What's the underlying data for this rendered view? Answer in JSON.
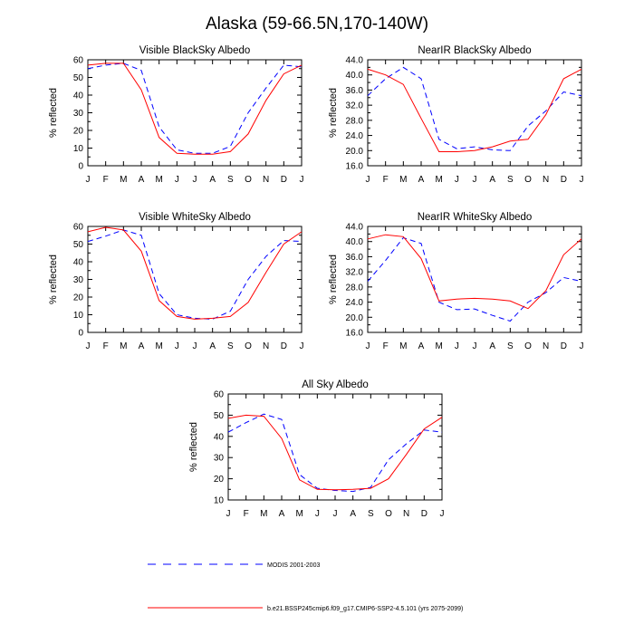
{
  "figure": {
    "title": "Alaska (59-66.5N,170-140W)"
  },
  "legend": [
    {
      "label": "MODIS 2001-2003",
      "color": "#0000ff",
      "dash": "dashed"
    },
    {
      "label": "b.e21.BSSP245cmip6.f09_g17.CMIP6-SSP2-4.5.101 (yrs 2075-2099)",
      "color": "#ff0000",
      "dash": "solid"
    }
  ],
  "chart_data": [
    {
      "type": "line",
      "title": "Visible BlackSky Albedo",
      "xlabel": "",
      "ylabel": "% reflected",
      "categories": [
        "J",
        "F",
        "M",
        "A",
        "M",
        "J",
        "J",
        "A",
        "S",
        "O",
        "N",
        "D",
        "J"
      ],
      "ylim": [
        0,
        60
      ],
      "yticks": [
        "0",
        "10",
        "20",
        "30",
        "40",
        "50",
        "60"
      ],
      "series": [
        {
          "name": "MODIS 2001-2003",
          "values": [
            55,
            57,
            58,
            54,
            22,
            9,
            7,
            7,
            11,
            30,
            44,
            57,
            56
          ]
        },
        {
          "name": "b.e21.BSSP245cmip6.f09_g17.CMIP6-SSP2-4.5.101 (yrs 2075-2099)",
          "values": [
            57,
            58,
            58,
            43,
            16,
            7,
            6.5,
            6.5,
            8,
            18,
            37,
            52,
            57
          ]
        }
      ]
    },
    {
      "type": "line",
      "title": "NearIR BlackSky Albedo",
      "xlabel": "",
      "ylabel": "% reflected",
      "categories": [
        "J",
        "F",
        "M",
        "A",
        "M",
        "J",
        "J",
        "A",
        "S",
        "O",
        "N",
        "D",
        "J"
      ],
      "ylim": [
        16,
        44
      ],
      "yticks": [
        "16.0",
        "20.0",
        "24.0",
        "28.0",
        "32.0",
        "36.0",
        "40.0",
        "44.0"
      ],
      "series": [
        {
          "name": "MODIS 2001-2003",
          "values": [
            34.5,
            39,
            42,
            39,
            23,
            20.5,
            21,
            20.2,
            20,
            26.5,
            30.5,
            35.5,
            34.5
          ]
        },
        {
          "name": "b.e21.BSSP245cmip6.f09_g17.CMIP6-SSP2-4.5.101 (yrs 2075-2099)",
          "values": [
            41.5,
            40,
            37.5,
            28.5,
            19.7,
            19.7,
            20,
            21,
            22.5,
            23,
            29.5,
            39,
            41.5
          ]
        }
      ]
    },
    {
      "type": "line",
      "title": "Visible WhiteSky Albedo",
      "xlabel": "",
      "ylabel": "% reflected",
      "categories": [
        "J",
        "F",
        "M",
        "A",
        "M",
        "J",
        "J",
        "A",
        "S",
        "O",
        "N",
        "D",
        "J"
      ],
      "ylim": [
        0,
        60
      ],
      "yticks": [
        "0",
        "10",
        "20",
        "30",
        "40",
        "50",
        "60"
      ],
      "series": [
        {
          "name": "MODIS 2001-2003",
          "values": [
            51.5,
            54.5,
            58,
            55,
            22,
            10,
            8,
            7.5,
            12,
            30,
            43,
            52,
            51.5
          ]
        },
        {
          "name": "b.e21.BSSP245cmip6.f09_g17.CMIP6-SSP2-4.5.101 (yrs 2075-2099)",
          "values": [
            57,
            59.5,
            58,
            46,
            18,
            9,
            7.5,
            8,
            9,
            17,
            34,
            50,
            57
          ]
        }
      ]
    },
    {
      "type": "line",
      "title": "NearIR WhiteSky Albedo",
      "xlabel": "",
      "ylabel": "% reflected",
      "categories": [
        "J",
        "F",
        "M",
        "A",
        "M",
        "J",
        "J",
        "A",
        "S",
        "O",
        "N",
        "D",
        "J"
      ],
      "ylim": [
        16,
        44
      ],
      "yticks": [
        "16.0",
        "20.0",
        "24.0",
        "28.0",
        "32.0",
        "36.0",
        "40.0",
        "44.0"
      ],
      "series": [
        {
          "name": "MODIS 2001-2003",
          "values": [
            29.5,
            35,
            41,
            39.5,
            24,
            22,
            22.2,
            20.5,
            19,
            24,
            26.5,
            30.5,
            29.5
          ]
        },
        {
          "name": "b.e21.BSSP245cmip6.f09_g17.CMIP6-SSP2-4.5.101 (yrs 2075-2099)",
          "values": [
            40.7,
            41.8,
            41.3,
            35.5,
            24.3,
            24.8,
            25,
            24.8,
            24.3,
            22.3,
            27,
            36.5,
            40.7
          ]
        }
      ]
    },
    {
      "type": "line",
      "title": "All Sky Albedo",
      "xlabel": "",
      "ylabel": "% reflected",
      "categories": [
        "J",
        "F",
        "M",
        "A",
        "M",
        "J",
        "J",
        "A",
        "S",
        "O",
        "N",
        "D",
        "J"
      ],
      "ylim": [
        10,
        60
      ],
      "yticks": [
        "10",
        "20",
        "30",
        "40",
        "50",
        "60"
      ],
      "series": [
        {
          "name": "MODIS 2001-2003",
          "values": [
            42,
            46.5,
            50.5,
            48,
            22,
            15.5,
            14.5,
            14,
            16,
            29,
            36.5,
            43,
            42
          ]
        },
        {
          "name": "b.e21.BSSP245cmip6.f09_g17.CMIP6-SSP2-4.5.101 (yrs 2075-2099)",
          "values": [
            48.5,
            50,
            49.5,
            39,
            19.5,
            15,
            14.8,
            15,
            15.5,
            20,
            31.5,
            43.5,
            49
          ]
        }
      ]
    }
  ]
}
